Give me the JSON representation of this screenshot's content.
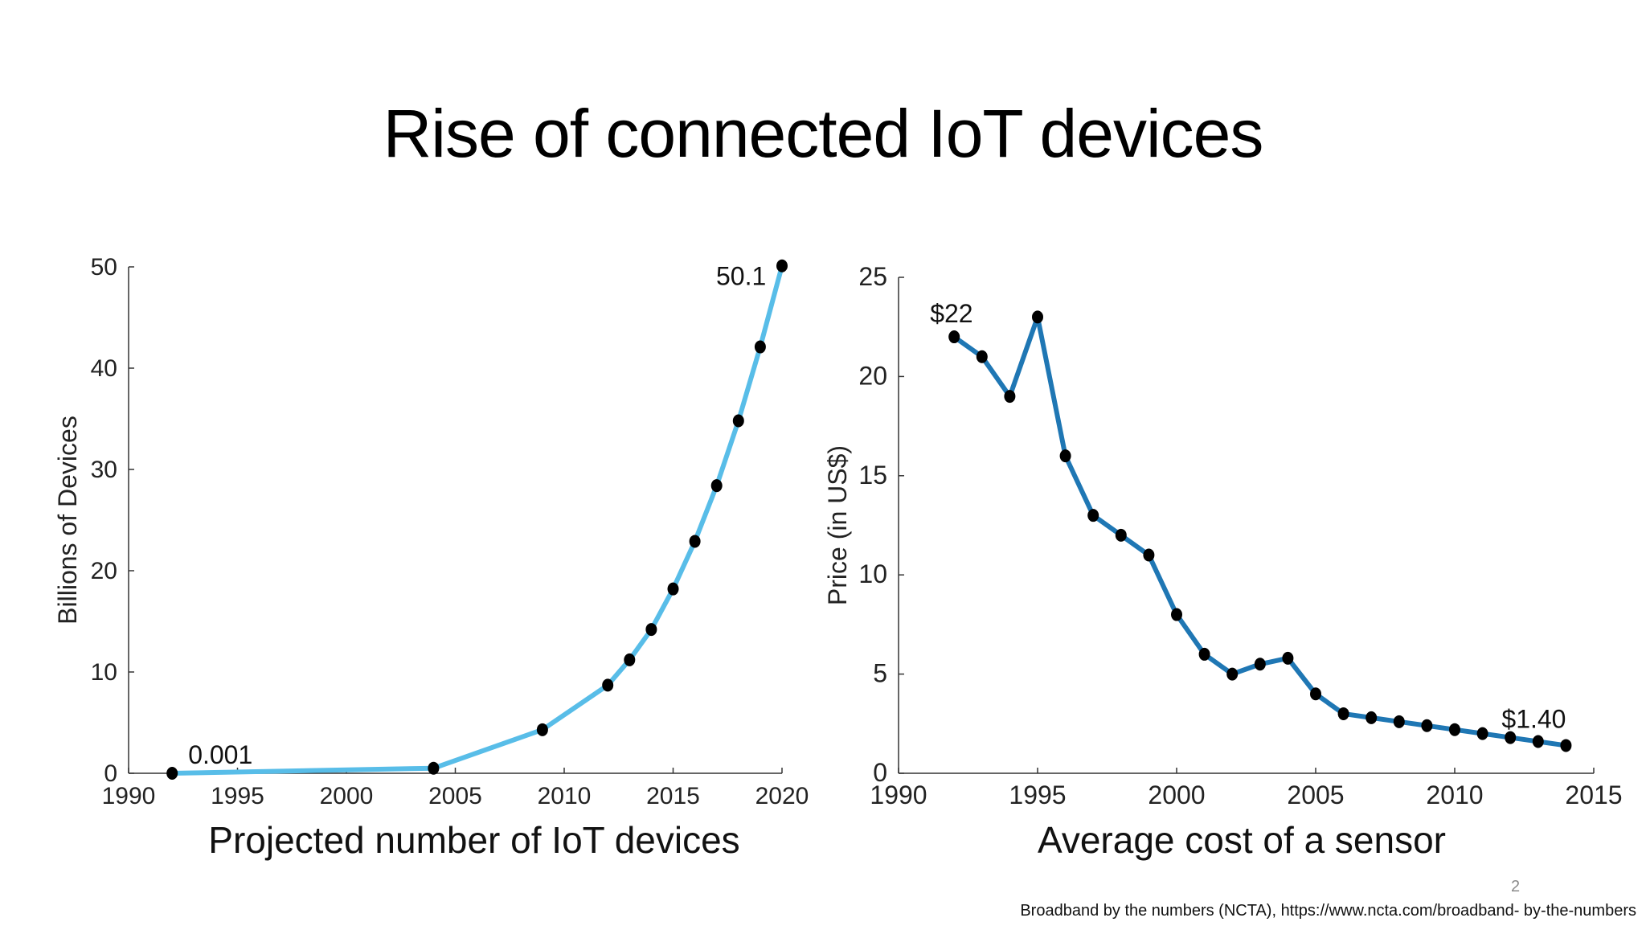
{
  "slide": {
    "title": "Rise of connected IoT devices",
    "page_number": "2",
    "source": "Broadband by the numbers (NCTA), https://www.ncta.com/broadband- by-the-numbers"
  },
  "chart_data": [
    {
      "id": "devices",
      "type": "line",
      "caption": "Projected number of IoT devices",
      "ylabel": "Billions of Devices",
      "xlabel": "",
      "xlim": [
        1990,
        2020
      ],
      "ylim": [
        0,
        50
      ],
      "xticks": [
        1990,
        1995,
        2000,
        2005,
        2010,
        2015,
        2020
      ],
      "yticks": [
        0,
        10,
        20,
        30,
        40,
        50
      ],
      "line_color": "#58bde8",
      "marker_color": "#000000",
      "series": [
        {
          "name": "devices",
          "x": [
            1992,
            2004,
            2009,
            2012,
            2013,
            2014,
            2015,
            2016,
            2017,
            2018,
            2019,
            2020
          ],
          "y": [
            0.001,
            0.5,
            4.3,
            8.7,
            11.2,
            14.2,
            18.2,
            22.9,
            28.4,
            34.8,
            42.1,
            50.1
          ]
        }
      ],
      "annotations": [
        {
          "text": "0.001",
          "x": 1992,
          "y": 0.001
        },
        {
          "text": "50.1",
          "x": 2020,
          "y": 50.1
        }
      ]
    },
    {
      "id": "cost",
      "type": "line",
      "caption": "Average cost of a sensor",
      "ylabel": "Price (in US$)",
      "xlabel": "",
      "xlim": [
        1990,
        2015
      ],
      "ylim": [
        0,
        25
      ],
      "xticks": [
        1990,
        1995,
        2000,
        2005,
        2010,
        2015
      ],
      "yticks": [
        0,
        5,
        10,
        15,
        20,
        25
      ],
      "line_color": "#1f77b4",
      "marker_color": "#000000",
      "series": [
        {
          "name": "price",
          "x": [
            1992,
            1993,
            1994,
            1995,
            1996,
            1997,
            1998,
            1999,
            2000,
            2001,
            2002,
            2003,
            2004,
            2005,
            2006,
            2007,
            2008,
            2009,
            2010,
            2011,
            2012,
            2013,
            2014
          ],
          "y": [
            22,
            21,
            19,
            23,
            16,
            13,
            12,
            11,
            8,
            6,
            5,
            5.5,
            5.8,
            4,
            3,
            2.8,
            2.6,
            2.4,
            2.2,
            2.0,
            1.8,
            1.6,
            1.4
          ]
        }
      ],
      "annotations": [
        {
          "text": "$22",
          "x": 1992,
          "y": 22
        },
        {
          "text": "$1.40",
          "x": 2014,
          "y": 1.4
        }
      ]
    }
  ]
}
